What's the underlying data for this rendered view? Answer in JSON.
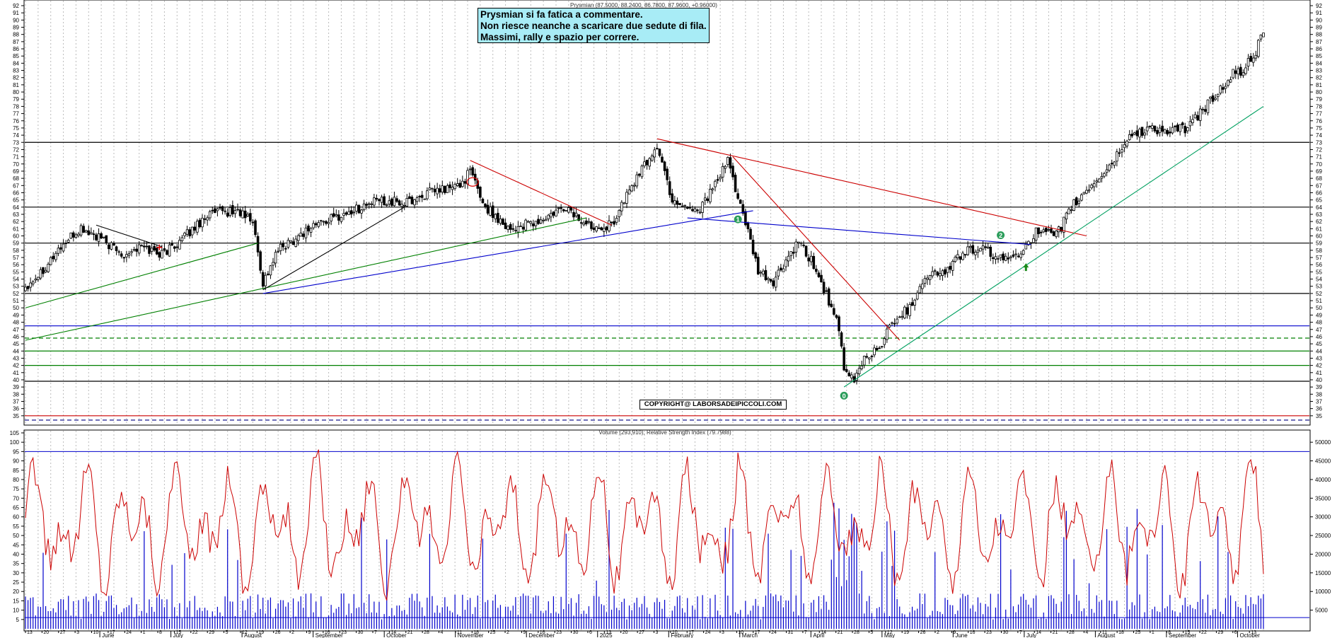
{
  "chart_data": [
    {
      "type": "candlestick",
      "title": "Prysmian (87.5000, 88.2400, 86.7800, 87.9600, +0.96000)",
      "ylim": [
        34,
        92
      ],
      "y_ticks": [
        35,
        36,
        37,
        38,
        39,
        40,
        41,
        42,
        43,
        44,
        45,
        46,
        47,
        48,
        49,
        50,
        51,
        52,
        53,
        54,
        55,
        56,
        57,
        58,
        59,
        60,
        61,
        62,
        63,
        64,
        65,
        66,
        67,
        68,
        69,
        70,
        71,
        72,
        73,
        74,
        75,
        76,
        77,
        78,
        79,
        80,
        81,
        82,
        83,
        84,
        85,
        86,
        87,
        88,
        89,
        90,
        91,
        92
      ],
      "grid": "vertical dotted",
      "annotation_lines": [
        "Prysmian si fa fatica a commentare.",
        "Non riesce neanche a scaricare due sedute di fila.",
        "Massimi, rally e spazio per correre."
      ],
      "copyright": "COPYRIGHT@ LABORSADEIPICCOLI.COM",
      "wave_labels": [
        "0",
        "1",
        "2"
      ],
      "close_path": [
        {
          "d": 0,
          "v": 53
        },
        {
          "d": 6,
          "v": 55
        },
        {
          "d": 14,
          "v": 58.5
        },
        {
          "d": 22,
          "v": 61
        },
        {
          "d": 30,
          "v": 59.5
        },
        {
          "d": 38,
          "v": 57.5
        },
        {
          "d": 46,
          "v": 58.5
        },
        {
          "d": 54,
          "v": 57.5
        },
        {
          "d": 62,
          "v": 59.5
        },
        {
          "d": 72,
          "v": 63
        },
        {
          "d": 84,
          "v": 63.5
        },
        {
          "d": 90,
          "v": 62
        },
        {
          "d": 94,
          "v": 53.5
        },
        {
          "d": 100,
          "v": 58
        },
        {
          "d": 114,
          "v": 61.5
        },
        {
          "d": 126,
          "v": 63
        },
        {
          "d": 140,
          "v": 65
        },
        {
          "d": 150,
          "v": 64.5
        },
        {
          "d": 160,
          "v": 66
        },
        {
          "d": 172,
          "v": 67
        },
        {
          "d": 176,
          "v": 69
        },
        {
          "d": 182,
          "v": 64
        },
        {
          "d": 192,
          "v": 61
        },
        {
          "d": 204,
          "v": 62
        },
        {
          "d": 214,
          "v": 64
        },
        {
          "d": 222,
          "v": 61.5
        },
        {
          "d": 232,
          "v": 61.5
        },
        {
          "d": 240,
          "v": 67
        },
        {
          "d": 250,
          "v": 72.5
        },
        {
          "d": 256,
          "v": 65
        },
        {
          "d": 266,
          "v": 63.5
        },
        {
          "d": 274,
          "v": 67.5
        },
        {
          "d": 278,
          "v": 70.5
        },
        {
          "d": 284,
          "v": 63
        },
        {
          "d": 290,
          "v": 55
        },
        {
          "d": 296,
          "v": 53.5
        },
        {
          "d": 302,
          "v": 57
        },
        {
          "d": 306,
          "v": 59
        },
        {
          "d": 312,
          "v": 56
        },
        {
          "d": 318,
          "v": 51
        },
        {
          "d": 322,
          "v": 47
        },
        {
          "d": 324,
          "v": 41
        },
        {
          "d": 328,
          "v": 40
        },
        {
          "d": 332,
          "v": 43
        },
        {
          "d": 338,
          "v": 44.5
        },
        {
          "d": 344,
          "v": 48.5
        },
        {
          "d": 350,
          "v": 50
        },
        {
          "d": 356,
          "v": 54.5
        },
        {
          "d": 364,
          "v": 55
        },
        {
          "d": 372,
          "v": 58
        },
        {
          "d": 380,
          "v": 58
        },
        {
          "d": 388,
          "v": 56.5
        },
        {
          "d": 394,
          "v": 58
        },
        {
          "d": 400,
          "v": 60.5
        },
        {
          "d": 408,
          "v": 60
        },
        {
          "d": 414,
          "v": 64
        },
        {
          "d": 422,
          "v": 67
        },
        {
          "d": 430,
          "v": 70
        },
        {
          "d": 436,
          "v": 73.5
        },
        {
          "d": 444,
          "v": 75
        },
        {
          "d": 452,
          "v": 74.5
        },
        {
          "d": 460,
          "v": 75
        },
        {
          "d": 466,
          "v": 77.5
        },
        {
          "d": 472,
          "v": 80
        },
        {
          "d": 478,
          "v": 82.5
        },
        {
          "d": 482,
          "v": 83
        },
        {
          "d": 486,
          "v": 85
        },
        {
          "d": 490,
          "v": 88
        }
      ],
      "horizontal_levels": [
        {
          "value": 73,
          "color": "#000000"
        },
        {
          "value": 64,
          "color": "#000000"
        },
        {
          "value": 59,
          "color": "#000000"
        },
        {
          "value": 52,
          "color": "#000000"
        },
        {
          "value": 47.5,
          "color": "#0000cc"
        },
        {
          "value": 45.8,
          "color": "#008000",
          "style": "dashed"
        },
        {
          "value": 44,
          "color": "#008000"
        },
        {
          "value": 42,
          "color": "#008000"
        },
        {
          "value": 39.8,
          "color": "#000000"
        },
        {
          "value": 35,
          "color": "#cc0000"
        },
        {
          "value": 34.4,
          "color": "#000080",
          "style": "dashed"
        }
      ],
      "trend_lines": [
        {
          "color": "#cc0000",
          "from": [
            176,
            70.5
          ],
          "to": [
            232,
            61.5
          ]
        },
        {
          "color": "#cc0000",
          "from": [
            250,
            73.5
          ],
          "to": [
            420,
            60
          ]
        },
        {
          "color": "#cc0000",
          "from": [
            280,
            71
          ],
          "to": [
            346,
            45.5
          ]
        },
        {
          "color": "#0000cc",
          "from": [
            94,
            52
          ],
          "to": [
            288,
            63.5
          ]
        },
        {
          "color": "#0000cc",
          "from": [
            262,
            62.5
          ],
          "to": [
            398,
            58.8
          ]
        },
        {
          "color": "#008000",
          "from": [
            0,
            50
          ],
          "to": [
            92,
            59
          ]
        },
        {
          "color": "#008000",
          "from": [
            0,
            45.5
          ],
          "to": [
            222,
            62.5
          ]
        },
        {
          "color": "#00a060",
          "from": [
            324,
            39
          ],
          "to": [
            490,
            78
          ]
        },
        {
          "color": "#000000",
          "from": [
            94,
            52.5
          ],
          "to": [
            150,
            64
          ]
        },
        {
          "color": "#000000",
          "from": [
            28,
            61.5
          ],
          "to": [
            54,
            58.5
          ]
        }
      ]
    },
    {
      "type": "bar+line",
      "title": "Volume (293,910), Relative Strength Index (79.7988)",
      "left_axis": {
        "label": "RSI",
        "range": [
          0,
          105
        ],
        "ticks": [
          5,
          10,
          15,
          20,
          25,
          30,
          35,
          40,
          45,
          50,
          55,
          60,
          65,
          70,
          75,
          80,
          85,
          90,
          95,
          100,
          105
        ]
      },
      "right_axis": {
        "label": "Volume",
        "range": [
          0,
          52500
        ],
        "ticks": [
          5000,
          10000,
          15000,
          20000,
          25000,
          30000,
          35000,
          40000,
          45000,
          50000
        ]
      },
      "rsi_levels": [
        95,
        6
      ],
      "rsi_series": {
        "color": "#cc0000"
      },
      "volume_series": {
        "color": "#0000cc"
      }
    }
  ],
  "x_axis": {
    "months": [
      {
        "label": "June",
        "d": 23
      },
      {
        "label": "July",
        "d": 45
      },
      {
        "label": "August",
        "d": 67
      },
      {
        "label": "September",
        "d": 89
      },
      {
        "label": "October",
        "d": 111
      },
      {
        "label": "November",
        "d": 133
      },
      {
        "label": "December",
        "d": 155
      },
      {
        "label": "2025",
        "d": 177
      },
      {
        "label": "February",
        "d": 199
      },
      {
        "label": "March",
        "d": 221
      },
      {
        "label": "April",
        "d": 243
      },
      {
        "label": "May",
        "d": 265
      },
      {
        "label": "June",
        "d": 287
      },
      {
        "label": "July",
        "d": 309
      },
      {
        "label": "August",
        "d": 331
      },
      {
        "label": "September",
        "d": 353
      },
      {
        "label": "October",
        "d": 375
      }
    ],
    "day_ticks": [
      "13",
      "20",
      "27",
      "3",
      "10",
      "17",
      "24",
      "1",
      "8",
      "15",
      "22",
      "29",
      "5",
      "12",
      "19",
      "26",
      "2",
      "9",
      "16",
      "23",
      "30",
      "7",
      "14",
      "21",
      "28",
      "4",
      "11",
      "18",
      "25",
      "2",
      "9",
      "16",
      "23",
      "30",
      "6",
      "13",
      "20",
      "27",
      "3",
      "10",
      "17",
      "24",
      "3",
      "10",
      "17",
      "24",
      "31",
      "7",
      "14",
      "21",
      "28",
      "5",
      "12",
      "19",
      "26",
      "2",
      "9",
      "16",
      "23",
      "30",
      "7",
      "14",
      "21",
      "28",
      "4",
      "11",
      "18",
      "25",
      "1",
      "8",
      "15",
      "22",
      "29",
      "6",
      "13"
    ]
  }
}
